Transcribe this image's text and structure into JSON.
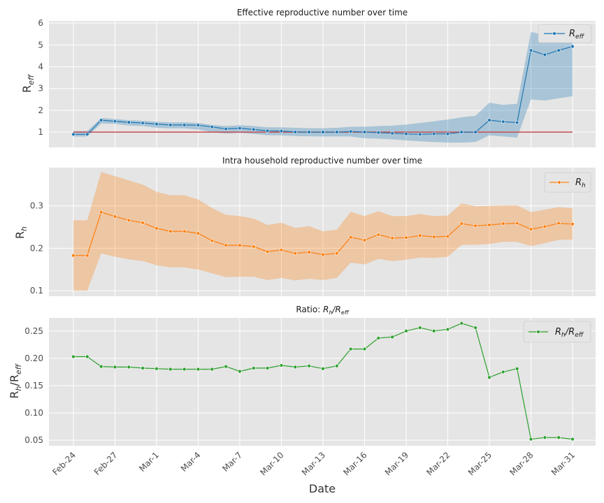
{
  "chart_data": [
    {
      "type": "line",
      "title": "Effective reproductive number over time",
      "ylabel": "R_eff",
      "ylim": [
        0.3,
        6.1
      ],
      "yticks": [
        1,
        2,
        3,
        4,
        5,
        6
      ],
      "legend_position": "top-right",
      "reference_line": 1,
      "series": [
        {
          "name": "R_eff",
          "color": "#1f77b4",
          "values": [
            0.9,
            0.9,
            1.55,
            1.5,
            1.45,
            1.42,
            1.37,
            1.33,
            1.33,
            1.32,
            1.24,
            1.15,
            1.18,
            1.12,
            1.06,
            1.05,
            1.01,
            1.0,
            1.0,
            1.0,
            1.03,
            1.0,
            0.98,
            0.95,
            0.92,
            0.9,
            0.92,
            0.92,
            1.0,
            1.0,
            1.55,
            1.48,
            1.44,
            4.75,
            4.55,
            4.75,
            4.93
          ],
          "lower": [
            0.8,
            0.8,
            1.4,
            1.38,
            1.3,
            1.28,
            1.2,
            1.17,
            1.17,
            1.12,
            1.0,
            0.93,
            0.97,
            0.92,
            0.86,
            0.85,
            0.82,
            0.81,
            0.8,
            0.8,
            0.8,
            0.72,
            0.7,
            0.67,
            0.62,
            0.58,
            0.55,
            0.52,
            0.52,
            0.55,
            0.85,
            0.8,
            0.75,
            2.5,
            2.45,
            2.55,
            2.65
          ],
          "upper": [
            1.05,
            1.05,
            1.65,
            1.6,
            1.55,
            1.52,
            1.48,
            1.45,
            1.45,
            1.42,
            1.33,
            1.28,
            1.32,
            1.28,
            1.22,
            1.22,
            1.2,
            1.18,
            1.18,
            1.2,
            1.25,
            1.25,
            1.28,
            1.3,
            1.35,
            1.42,
            1.5,
            1.58,
            1.68,
            1.75,
            2.35,
            2.25,
            2.3,
            5.6,
            5.45,
            5.6,
            5.75
          ]
        }
      ]
    },
    {
      "type": "line",
      "title": "Intra household reproductive number over time",
      "ylabel": "R_h",
      "ylim": [
        0.087,
        0.39
      ],
      "yticks": [
        0.1,
        0.2,
        0.3
      ],
      "legend_position": "top-right",
      "series": [
        {
          "name": "R_h",
          "color": "#ff7f0e",
          "values": [
            0.183,
            0.183,
            0.285,
            0.275,
            0.266,
            0.26,
            0.247,
            0.24,
            0.24,
            0.235,
            0.218,
            0.207,
            0.207,
            0.204,
            0.192,
            0.196,
            0.188,
            0.191,
            0.185,
            0.188,
            0.226,
            0.219,
            0.232,
            0.224,
            0.225,
            0.23,
            0.227,
            0.228,
            0.258,
            0.253,
            0.255,
            0.258,
            0.259,
            0.245,
            0.251,
            0.259,
            0.257
          ],
          "lower": [
            0.1,
            0.1,
            0.188,
            0.18,
            0.174,
            0.17,
            0.16,
            0.155,
            0.155,
            0.15,
            0.141,
            0.132,
            0.133,
            0.133,
            0.125,
            0.13,
            0.124,
            0.128,
            0.125,
            0.13,
            0.166,
            0.162,
            0.175,
            0.17,
            0.173,
            0.178,
            0.177,
            0.18,
            0.208,
            0.208,
            0.21,
            0.215,
            0.215,
            0.205,
            0.212,
            0.22,
            0.22
          ],
          "upper": [
            0.266,
            0.266,
            0.38,
            0.37,
            0.36,
            0.35,
            0.333,
            0.325,
            0.325,
            0.315,
            0.295,
            0.279,
            0.276,
            0.27,
            0.255,
            0.26,
            0.248,
            0.252,
            0.24,
            0.244,
            0.286,
            0.276,
            0.287,
            0.276,
            0.276,
            0.281,
            0.276,
            0.277,
            0.306,
            0.299,
            0.3,
            0.301,
            0.301,
            0.285,
            0.291,
            0.297,
            0.294
          ]
        }
      ]
    },
    {
      "type": "line",
      "title": "Ratio: R_h/R_eff",
      "xlabel": "Date",
      "ylabel": "R_h/R_eff",
      "ylim": [
        0.04,
        0.274
      ],
      "yticks": [
        0.05,
        0.1,
        0.15,
        0.2,
        0.25
      ],
      "legend_position": "top-right",
      "series": [
        {
          "name": "R_h/R_eff",
          "color": "#2ca02c",
          "values": [
            0.203,
            0.203,
            0.185,
            0.184,
            0.184,
            0.182,
            0.181,
            0.18,
            0.18,
            0.18,
            0.18,
            0.185,
            0.176,
            0.182,
            0.182,
            0.187,
            0.184,
            0.186,
            0.181,
            0.186,
            0.217,
            0.217,
            0.237,
            0.239,
            0.25,
            0.256,
            0.25,
            0.253,
            0.264,
            0.256,
            0.165,
            0.175,
            0.181,
            0.052,
            0.055,
            0.055,
            0.052
          ]
        }
      ]
    }
  ],
  "x_axis": {
    "n_points": 37,
    "tick_labels": [
      "Feb-24",
      "Feb-27",
      "Mar-1",
      "Mar-4",
      "Mar-7",
      "Mar-10",
      "Mar-13",
      "Mar-16",
      "Mar-19",
      "Mar-22",
      "Mar-25",
      "Mar-28",
      "Mar-31"
    ],
    "tick_step": 3,
    "label": "Date"
  },
  "legend_labels": {
    "p0": {
      "base": "R",
      "sub": "eff"
    },
    "p1": {
      "base": "R",
      "sub": "h"
    },
    "p2": {
      "base": "R",
      "sub": "h",
      "mid": "/R",
      "sub2": "eff"
    }
  },
  "style": {
    "background": "#e5e5e5",
    "grid": "#ffffff",
    "reference_line_color": "#c44e52"
  }
}
